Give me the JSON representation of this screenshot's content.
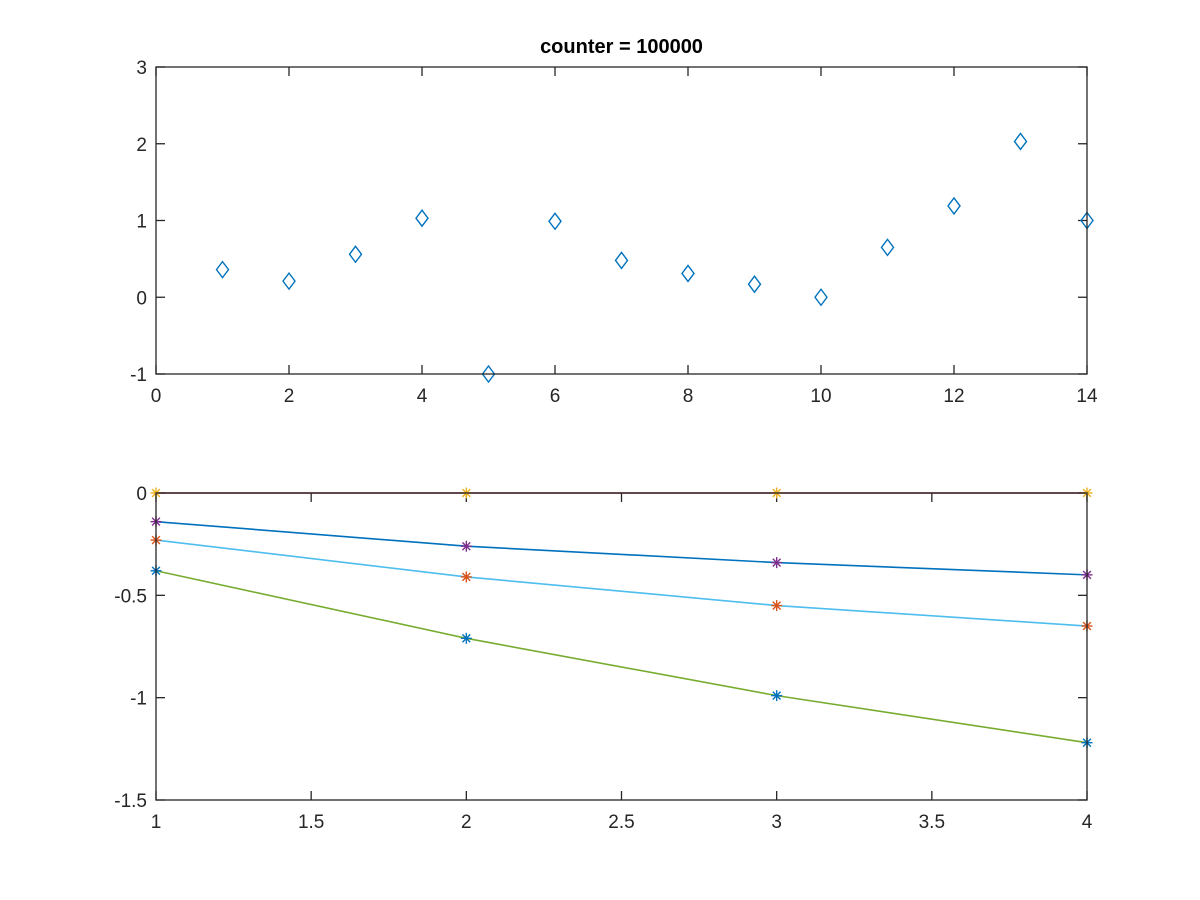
{
  "chart_data": [
    {
      "type": "scatter",
      "title": "counter = 100000",
      "xlabel": "",
      "ylabel": "",
      "xlim": [
        0,
        14
      ],
      "ylim": [
        -1,
        3
      ],
      "xticks": [
        0,
        2,
        4,
        6,
        8,
        10,
        12,
        14
      ],
      "xtick_labels": [
        "0",
        "2",
        "4",
        "6",
        "8",
        "10",
        "12",
        "14"
      ],
      "yticks": [
        -1,
        0,
        1,
        2,
        3
      ],
      "ytick_labels": [
        "-1",
        "0",
        "1",
        "2",
        "3"
      ],
      "grid": false,
      "marker": "diamond",
      "color": "#0072BD",
      "x": [
        1,
        2,
        3,
        4,
        5,
        6,
        7,
        8,
        9,
        10,
        11,
        12,
        13,
        14
      ],
      "y": [
        0.36,
        0.21,
        0.56,
        1.03,
        -1.0,
        0.99,
        0.48,
        0.31,
        0.17,
        0.0,
        0.65,
        1.19,
        2.03,
        1.0
      ]
    },
    {
      "type": "line",
      "title": "",
      "xlabel": "",
      "ylabel": "",
      "xlim": [
        1,
        4
      ],
      "ylim": [
        -1.5,
        0
      ],
      "xticks": [
        1,
        1.5,
        2,
        2.5,
        3,
        3.5,
        4
      ],
      "xtick_labels": [
        "1",
        "1.5",
        "2",
        "2.5",
        "3",
        "3.5",
        "4"
      ],
      "yticks": [
        -1.5,
        -1,
        -0.5,
        0
      ],
      "ytick_labels": [
        "-1.5",
        "-1",
        "-0.5",
        "0"
      ],
      "grid": false,
      "x": [
        1,
        2,
        3,
        4
      ],
      "lines": [
        {
          "color": "#A2142F",
          "values": [
            0,
            0,
            0,
            0
          ]
        },
        {
          "color": "#0072BD",
          "values": [
            -0.14,
            -0.26,
            -0.34,
            -0.4
          ]
        },
        {
          "color": "#4DBEEE",
          "values": [
            -0.23,
            -0.41,
            -0.55,
            -0.65
          ]
        },
        {
          "color": "#77AC30",
          "values": [
            -0.38,
            -0.71,
            -0.99,
            -1.22
          ]
        }
      ],
      "markers": [
        {
          "marker": "asterisk",
          "color": "#EDB120",
          "values": [
            0,
            0,
            0,
            0
          ]
        },
        {
          "marker": "asterisk",
          "color": "#7E2F8E",
          "values": [
            -0.14,
            -0.26,
            -0.34,
            -0.4
          ]
        },
        {
          "marker": "asterisk",
          "color": "#D95319",
          "values": [
            -0.23,
            -0.41,
            -0.55,
            -0.65
          ]
        },
        {
          "marker": "asterisk",
          "color": "#0072BD",
          "values": [
            -0.38,
            -0.71,
            -0.99,
            -1.22
          ]
        }
      ]
    }
  ]
}
